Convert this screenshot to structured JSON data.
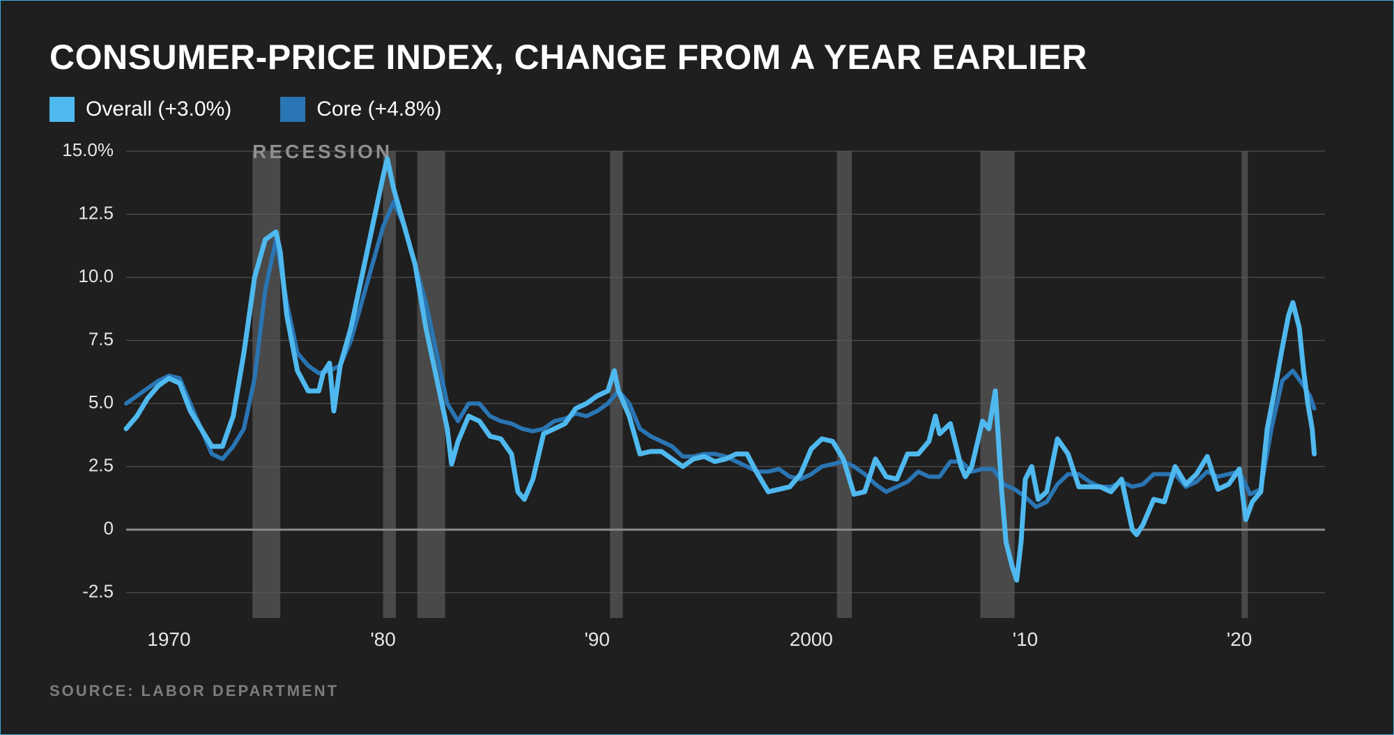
{
  "title": "CONSUMER-PRICE INDEX, CHANGE FROM A YEAR EARLIER",
  "source": "SOURCE: LABOR DEPARTMENT",
  "recession_label": "RECESSION",
  "legend": {
    "overall": {
      "label": "Overall (+3.0%)",
      "color": "#4fb9ef"
    },
    "core": {
      "label": "Core (+4.8%)",
      "color": "#2a75b3"
    }
  },
  "chart": {
    "type": "line",
    "background_color": "#1f1f1f",
    "grid_color": "#5a5a5a",
    "zero_line_color": "#8a8a8a",
    "recession_band_color": "#6b6b6b",
    "xlim": [
      1968,
      2024
    ],
    "ylim": [
      -3.5,
      15.0
    ],
    "y_ticks": [
      -2.5,
      0,
      2.5,
      5.0,
      7.5,
      10.0,
      12.5,
      15.0
    ],
    "y_tick_labels": [
      "-2.5",
      "0",
      "2.5",
      "5.0",
      "7.5",
      "10.0",
      "12.5",
      "15.0%"
    ],
    "x_ticks": [
      1970,
      1980,
      1990,
      2000,
      2010,
      2020
    ],
    "x_tick_labels": [
      "1970",
      "'80",
      "'90",
      "2000",
      "'10",
      "'20"
    ],
    "recessions": [
      [
        1973.9,
        1975.2
      ],
      [
        1980.0,
        1980.6
      ],
      [
        1981.6,
        1982.9
      ],
      [
        1990.6,
        1991.2
      ],
      [
        2001.2,
        2001.9
      ],
      [
        2007.9,
        2009.5
      ],
      [
        2020.1,
        2020.4
      ]
    ],
    "series": {
      "core": {
        "color": "#2a75b3",
        "stroke_width": 6,
        "points": [
          [
            1968.0,
            5.0
          ],
          [
            1968.5,
            5.3
          ],
          [
            1969.0,
            5.6
          ],
          [
            1969.5,
            5.9
          ],
          [
            1970.0,
            6.1
          ],
          [
            1970.5,
            6.0
          ],
          [
            1971.0,
            5.0
          ],
          [
            1971.5,
            4.0
          ],
          [
            1972.0,
            3.0
          ],
          [
            1972.5,
            2.8
          ],
          [
            1973.0,
            3.3
          ],
          [
            1973.5,
            4.0
          ],
          [
            1974.0,
            6.0
          ],
          [
            1974.5,
            9.5
          ],
          [
            1975.0,
            11.5
          ],
          [
            1975.5,
            9.0
          ],
          [
            1976.0,
            7.0
          ],
          [
            1976.5,
            6.5
          ],
          [
            1977.0,
            6.2
          ],
          [
            1977.5,
            6.3
          ],
          [
            1978.0,
            6.5
          ],
          [
            1978.5,
            7.5
          ],
          [
            1979.0,
            9.0
          ],
          [
            1979.5,
            10.5
          ],
          [
            1980.0,
            12.0
          ],
          [
            1980.5,
            13.0
          ],
          [
            1981.0,
            12.0
          ],
          [
            1981.5,
            10.5
          ],
          [
            1982.0,
            9.0
          ],
          [
            1982.5,
            7.0
          ],
          [
            1983.0,
            5.0
          ],
          [
            1983.5,
            4.3
          ],
          [
            1984.0,
            5.0
          ],
          [
            1984.5,
            5.0
          ],
          [
            1985.0,
            4.5
          ],
          [
            1985.5,
            4.3
          ],
          [
            1986.0,
            4.2
          ],
          [
            1986.5,
            4.0
          ],
          [
            1987.0,
            3.9
          ],
          [
            1987.5,
            4.0
          ],
          [
            1988.0,
            4.3
          ],
          [
            1988.5,
            4.4
          ],
          [
            1989.0,
            4.6
          ],
          [
            1989.5,
            4.5
          ],
          [
            1990.0,
            4.7
          ],
          [
            1990.5,
            5.0
          ],
          [
            1991.0,
            5.5
          ],
          [
            1991.5,
            5.0
          ],
          [
            1992.0,
            4.0
          ],
          [
            1992.5,
            3.7
          ],
          [
            1993.0,
            3.5
          ],
          [
            1993.5,
            3.3
          ],
          [
            1994.0,
            2.9
          ],
          [
            1994.5,
            2.9
          ],
          [
            1995.0,
            3.0
          ],
          [
            1995.5,
            3.0
          ],
          [
            1996.0,
            2.9
          ],
          [
            1996.5,
            2.7
          ],
          [
            1997.0,
            2.5
          ],
          [
            1997.5,
            2.3
          ],
          [
            1998.0,
            2.3
          ],
          [
            1998.5,
            2.4
          ],
          [
            1999.0,
            2.1
          ],
          [
            1999.5,
            2.0
          ],
          [
            2000.0,
            2.2
          ],
          [
            2000.5,
            2.5
          ],
          [
            2001.0,
            2.6
          ],
          [
            2001.5,
            2.7
          ],
          [
            2002.0,
            2.5
          ],
          [
            2002.5,
            2.2
          ],
          [
            2003.0,
            1.8
          ],
          [
            2003.5,
            1.5
          ],
          [
            2004.0,
            1.7
          ],
          [
            2004.5,
            1.9
          ],
          [
            2005.0,
            2.3
          ],
          [
            2005.5,
            2.1
          ],
          [
            2006.0,
            2.1
          ],
          [
            2006.5,
            2.7
          ],
          [
            2007.0,
            2.7
          ],
          [
            2007.5,
            2.3
          ],
          [
            2008.0,
            2.4
          ],
          [
            2008.5,
            2.4
          ],
          [
            2009.0,
            1.8
          ],
          [
            2009.5,
            1.6
          ],
          [
            2010.0,
            1.3
          ],
          [
            2010.5,
            0.9
          ],
          [
            2011.0,
            1.1
          ],
          [
            2011.5,
            1.8
          ],
          [
            2012.0,
            2.2
          ],
          [
            2012.5,
            2.2
          ],
          [
            2013.0,
            1.9
          ],
          [
            2013.5,
            1.7
          ],
          [
            2014.0,
            1.7
          ],
          [
            2014.5,
            1.9
          ],
          [
            2015.0,
            1.7
          ],
          [
            2015.5,
            1.8
          ],
          [
            2016.0,
            2.2
          ],
          [
            2016.5,
            2.2
          ],
          [
            2017.0,
            2.2
          ],
          [
            2017.5,
            1.7
          ],
          [
            2018.0,
            1.9
          ],
          [
            2018.5,
            2.3
          ],
          [
            2019.0,
            2.1
          ],
          [
            2019.5,
            2.2
          ],
          [
            2020.0,
            2.3
          ],
          [
            2020.5,
            1.4
          ],
          [
            2021.0,
            1.6
          ],
          [
            2021.5,
            4.0
          ],
          [
            2022.0,
            5.9
          ],
          [
            2022.5,
            6.3
          ],
          [
            2023.0,
            5.7
          ],
          [
            2023.3,
            5.3
          ],
          [
            2023.5,
            4.8
          ]
        ]
      },
      "overall": {
        "color": "#4fb9ef",
        "stroke_width": 7,
        "points": [
          [
            1968.0,
            4.0
          ],
          [
            1968.5,
            4.5
          ],
          [
            1969.0,
            5.2
          ],
          [
            1969.5,
            5.7
          ],
          [
            1970.0,
            6.0
          ],
          [
            1970.5,
            5.8
          ],
          [
            1971.0,
            4.7
          ],
          [
            1971.5,
            4.0
          ],
          [
            1972.0,
            3.3
          ],
          [
            1972.5,
            3.3
          ],
          [
            1973.0,
            4.5
          ],
          [
            1973.5,
            7.0
          ],
          [
            1974.0,
            10.0
          ],
          [
            1974.5,
            11.5
          ],
          [
            1975.0,
            11.8
          ],
          [
            1975.2,
            11.0
          ],
          [
            1975.5,
            8.5
          ],
          [
            1976.0,
            6.3
          ],
          [
            1976.5,
            5.5
          ],
          [
            1977.0,
            5.5
          ],
          [
            1977.2,
            6.2
          ],
          [
            1977.5,
            6.6
          ],
          [
            1977.7,
            4.7
          ],
          [
            1978.0,
            6.5
          ],
          [
            1978.5,
            8.0
          ],
          [
            1979.0,
            10.0
          ],
          [
            1979.5,
            12.0
          ],
          [
            1980.0,
            14.0
          ],
          [
            1980.2,
            14.7
          ],
          [
            1980.5,
            13.5
          ],
          [
            1981.0,
            12.0
          ],
          [
            1981.5,
            10.5
          ],
          [
            1982.0,
            8.0
          ],
          [
            1982.5,
            6.0
          ],
          [
            1983.0,
            4.0
          ],
          [
            1983.2,
            2.6
          ],
          [
            1983.5,
            3.5
          ],
          [
            1984.0,
            4.5
          ],
          [
            1984.5,
            4.3
          ],
          [
            1985.0,
            3.7
          ],
          [
            1985.5,
            3.6
          ],
          [
            1986.0,
            3.0
          ],
          [
            1986.3,
            1.5
          ],
          [
            1986.6,
            1.2
          ],
          [
            1987.0,
            2.0
          ],
          [
            1987.5,
            3.8
          ],
          [
            1988.0,
            4.0
          ],
          [
            1988.5,
            4.2
          ],
          [
            1989.0,
            4.8
          ],
          [
            1989.5,
            5.0
          ],
          [
            1990.0,
            5.3
          ],
          [
            1990.5,
            5.5
          ],
          [
            1990.8,
            6.3
          ],
          [
            1991.0,
            5.5
          ],
          [
            1991.5,
            4.5
          ],
          [
            1992.0,
            3.0
          ],
          [
            1992.5,
            3.1
          ],
          [
            1993.0,
            3.1
          ],
          [
            1993.5,
            2.8
          ],
          [
            1994.0,
            2.5
          ],
          [
            1994.5,
            2.8
          ],
          [
            1995.0,
            2.9
          ],
          [
            1995.5,
            2.7
          ],
          [
            1996.0,
            2.8
          ],
          [
            1996.5,
            3.0
          ],
          [
            1997.0,
            3.0
          ],
          [
            1997.5,
            2.2
          ],
          [
            1998.0,
            1.5
          ],
          [
            1998.5,
            1.6
          ],
          [
            1999.0,
            1.7
          ],
          [
            1999.5,
            2.2
          ],
          [
            2000.0,
            3.2
          ],
          [
            2000.5,
            3.6
          ],
          [
            2001.0,
            3.5
          ],
          [
            2001.5,
            2.8
          ],
          [
            2002.0,
            1.4
          ],
          [
            2002.5,
            1.5
          ],
          [
            2003.0,
            2.8
          ],
          [
            2003.5,
            2.1
          ],
          [
            2004.0,
            2.0
          ],
          [
            2004.5,
            3.0
          ],
          [
            2005.0,
            3.0
          ],
          [
            2005.5,
            3.5
          ],
          [
            2005.8,
            4.5
          ],
          [
            2006.0,
            3.8
          ],
          [
            2006.5,
            4.2
          ],
          [
            2007.0,
            2.5
          ],
          [
            2007.2,
            2.1
          ],
          [
            2007.5,
            2.5
          ],
          [
            2008.0,
            4.3
          ],
          [
            2008.3,
            4.0
          ],
          [
            2008.6,
            5.5
          ],
          [
            2008.9,
            1.5
          ],
          [
            2009.1,
            -0.5
          ],
          [
            2009.4,
            -1.5
          ],
          [
            2009.6,
            -2.0
          ],
          [
            2009.8,
            -0.5
          ],
          [
            2010.0,
            2.0
          ],
          [
            2010.3,
            2.5
          ],
          [
            2010.6,
            1.2
          ],
          [
            2011.0,
            1.5
          ],
          [
            2011.5,
            3.6
          ],
          [
            2012.0,
            3.0
          ],
          [
            2012.5,
            1.7
          ],
          [
            2013.0,
            1.7
          ],
          [
            2013.5,
            1.7
          ],
          [
            2014.0,
            1.5
          ],
          [
            2014.5,
            2.0
          ],
          [
            2015.0,
            0.0
          ],
          [
            2015.2,
            -0.2
          ],
          [
            2015.5,
            0.2
          ],
          [
            2016.0,
            1.2
          ],
          [
            2016.5,
            1.1
          ],
          [
            2017.0,
            2.5
          ],
          [
            2017.5,
            1.8
          ],
          [
            2018.0,
            2.2
          ],
          [
            2018.5,
            2.9
          ],
          [
            2019.0,
            1.6
          ],
          [
            2019.5,
            1.8
          ],
          [
            2020.0,
            2.4
          ],
          [
            2020.3,
            0.4
          ],
          [
            2020.6,
            1.1
          ],
          [
            2021.0,
            1.5
          ],
          [
            2021.3,
            4.0
          ],
          [
            2021.6,
            5.3
          ],
          [
            2022.0,
            7.2
          ],
          [
            2022.3,
            8.5
          ],
          [
            2022.5,
            9.0
          ],
          [
            2022.8,
            8.0
          ],
          [
            2023.0,
            6.3
          ],
          [
            2023.2,
            5.0
          ],
          [
            2023.4,
            4.0
          ],
          [
            2023.5,
            3.0
          ]
        ]
      }
    }
  },
  "style": {
    "title_fontsize": 50,
    "legend_fontsize": 30,
    "tick_fontsize": 26,
    "source_fontsize": 22,
    "title_color": "#ffffff",
    "tick_color": "#e6e6e6",
    "source_color": "#7d7d7d",
    "recession_label_color": "#8f8f8f",
    "frame_border_color": "#39aee0",
    "swatch_size": 36
  }
}
